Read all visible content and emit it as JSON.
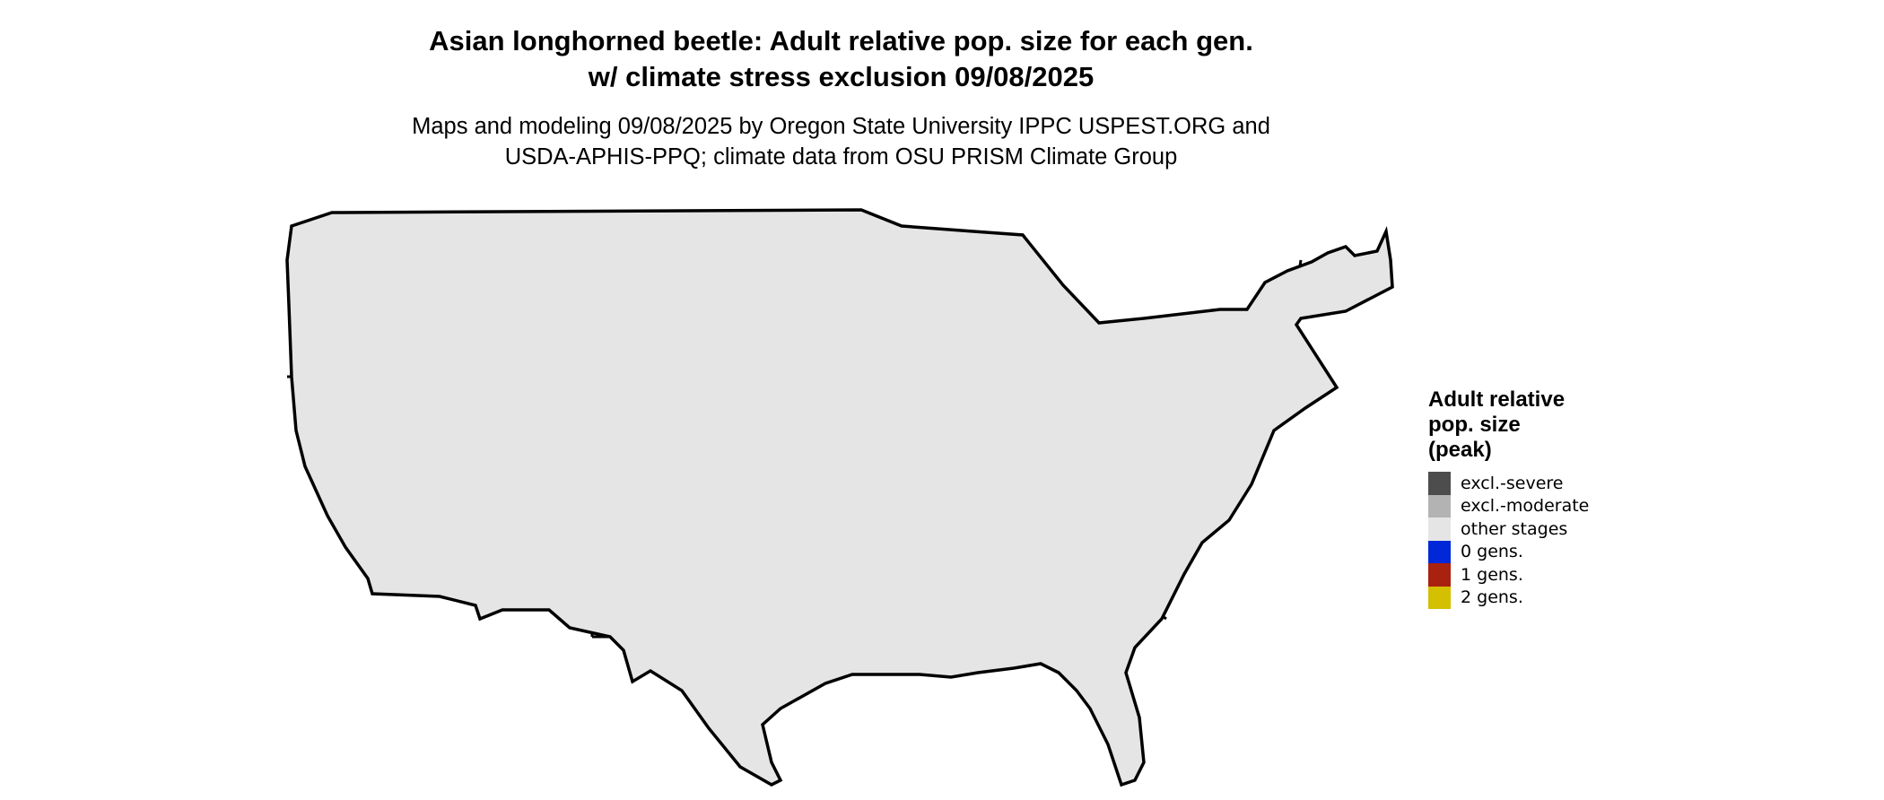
{
  "map": {
    "title_lines": [
      "Asian longhorned beetle: Adult relative pop. size for each gen.",
      "w/ climate stress exclusion 09/08/2025"
    ],
    "subtitle_lines": [
      "Maps and modeling 09/08/2025 by Oregon State University IPPC USPEST.ORG and",
      "USDA-APHIS-PPQ; climate data from OSU PRISM Climate Group"
    ],
    "region": "Contiguous United States",
    "colors": {
      "land_default": "#e5e5e5",
      "light_blue": "#00bfff",
      "border": "#000000"
    }
  },
  "legend": {
    "title_lines": [
      "Adult relative",
      "pop. size",
      "(peak)"
    ],
    "items": [
      {
        "label": "excl.-severe",
        "color": "#4d4d4d"
      },
      {
        "label": "excl.-moderate",
        "color": "#b3b3b3"
      },
      {
        "label": "other stages",
        "color": "#e5e5e5"
      },
      {
        "label": "0 gens.",
        "color": "#0028d9"
      },
      {
        "label": "1 gens.",
        "color": "#a8220f"
      },
      {
        "label": "2 gens.",
        "color": "#d4bf00"
      }
    ]
  }
}
